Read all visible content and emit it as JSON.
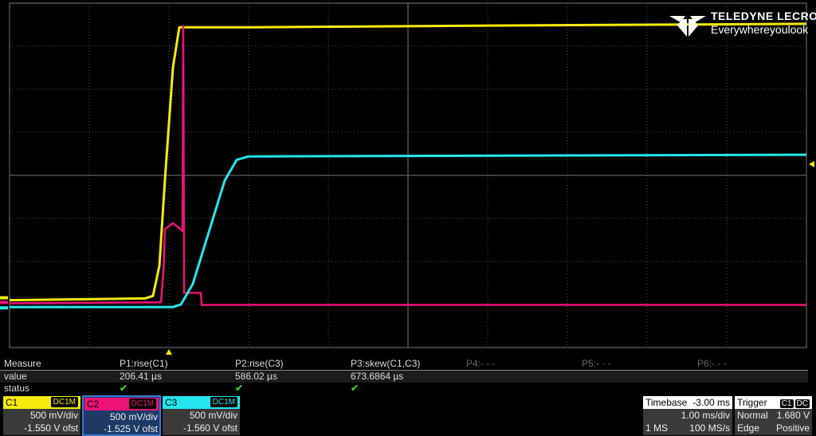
{
  "logo": {
    "brand": "TELEDYNE LECROY",
    "tagline": "Everywhereyoulook"
  },
  "measure": {
    "row_labels": [
      "Measure",
      "value",
      "status"
    ],
    "params": [
      {
        "name": "P1:rise(C1)",
        "value": "206.41 µs",
        "status": "✔"
      },
      {
        "name": "P2:rise(C3)",
        "value": "586.02 µs",
        "status": "✔"
      },
      {
        "name": "P3:skew(C1,C3)",
        "value": "673.6864 µs",
        "status": "✔"
      },
      {
        "name": "P4:- - -",
        "value": "",
        "status": ""
      },
      {
        "name": "P5:- - -",
        "value": "",
        "status": ""
      },
      {
        "name": "P6:- - -",
        "value": "",
        "status": ""
      }
    ]
  },
  "channels": [
    {
      "label": "C1",
      "coupling": "DC1M",
      "vdiv": "500 mV/div",
      "offset": "-1.550 V ofst",
      "color": "#f5eb0a"
    },
    {
      "label": "C2",
      "coupling": "DC1M",
      "vdiv": "500 mV/div",
      "offset": "-1.525 V ofst",
      "color": "#ee1177"
    },
    {
      "label": "C3",
      "coupling": "DC1M",
      "vdiv": "500 mV/div",
      "offset": "-1.560 V ofst",
      "color": "#22e6ec"
    }
  ],
  "timebase": {
    "title": "Timebase",
    "delay": "-3.00 ms",
    "tdiv": "1.00 ms/div",
    "samples": "1 MS",
    "rate": "100 MS/s"
  },
  "trigger": {
    "title": "Trigger",
    "source": "C1",
    "coupling": "DC",
    "mode": "Normal",
    "level": "1.680 V",
    "type": "Edge",
    "slope": "Positive"
  },
  "chart_data": {
    "type": "line",
    "x_unit": "ms (relative to trigger)",
    "xlim": [
      -2,
      8
    ],
    "grid": true,
    "series": [
      {
        "name": "C1",
        "center_v": 1.55,
        "v_per_div": 0.5,
        "points": [
          [
            -2,
            0.1
          ],
          [
            -0.3,
            0.12
          ],
          [
            -0.2,
            0.15
          ],
          [
            -0.12,
            0.5
          ],
          [
            -0.05,
            1.5
          ],
          [
            0.05,
            2.8
          ],
          [
            0.13,
            3.27
          ],
          [
            1,
            3.27
          ],
          [
            4,
            3.29
          ],
          [
            8,
            3.31
          ]
        ]
      },
      {
        "name": "C2",
        "center_v": 1.525,
        "v_per_div": 0.5,
        "points": [
          [
            -2,
            0.04
          ],
          [
            -0.1,
            0.05
          ],
          [
            -0.07,
            0.4
          ],
          [
            -0.05,
            0.9
          ],
          [
            0.05,
            0.97
          ],
          [
            0.17,
            0.88
          ],
          [
            0.18,
            3.26
          ],
          [
            0.19,
            0.16
          ],
          [
            0.4,
            0.16
          ],
          [
            0.41,
            0.02
          ],
          [
            8,
            0.02
          ]
        ]
      },
      {
        "name": "C3",
        "center_v": 1.56,
        "v_per_div": 0.5,
        "points": [
          [
            -2,
            0.03
          ],
          [
            0.05,
            0.03
          ],
          [
            0.15,
            0.06
          ],
          [
            0.3,
            0.3
          ],
          [
            0.5,
            0.9
          ],
          [
            0.7,
            1.5
          ],
          [
            0.85,
            1.74
          ],
          [
            1.0,
            1.78
          ],
          [
            8,
            1.8
          ]
        ]
      }
    ],
    "trigger_level_v": 1.68
  }
}
